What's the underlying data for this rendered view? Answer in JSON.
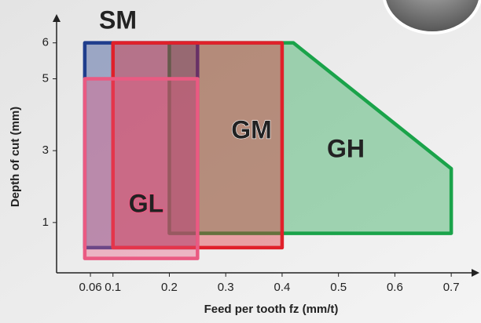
{
  "chart_data": {
    "type": "region",
    "x_label": "Feed per tooth fz (mm/t)",
    "y_label": "Depth of cut (mm)",
    "xlim": [
      0,
      0.75
    ],
    "ylim": [
      -0.4,
      6.8
    ],
    "xticks": [
      0.06,
      0.1,
      0.2,
      0.3,
      0.4,
      0.5,
      0.6,
      0.7
    ],
    "yticks": [
      1,
      3,
      5,
      6
    ],
    "series": [
      {
        "name": "GH",
        "color": "#1aa34a",
        "x": [
          0.2,
          0.42,
          0.7,
          0.7,
          0.2
        ],
        "y": [
          6,
          6,
          2.5,
          0.7,
          0.7
        ]
      },
      {
        "name": "SM",
        "color": "#1f3d8c",
        "x": [
          0.05,
          0.25,
          0.25,
          0.05
        ],
        "y": [
          6,
          6,
          0.3,
          0.3
        ]
      },
      {
        "name": "GM",
        "color": "#e0202a",
        "x": [
          0.1,
          0.4,
          0.4,
          0.1
        ],
        "y": [
          6,
          6,
          0.3,
          0.3
        ]
      },
      {
        "name": "GL",
        "color": "#ea5a82",
        "x": [
          0.05,
          0.25,
          0.25,
          0.05
        ],
        "y": [
          5,
          5,
          0,
          0
        ]
      }
    ]
  }
}
